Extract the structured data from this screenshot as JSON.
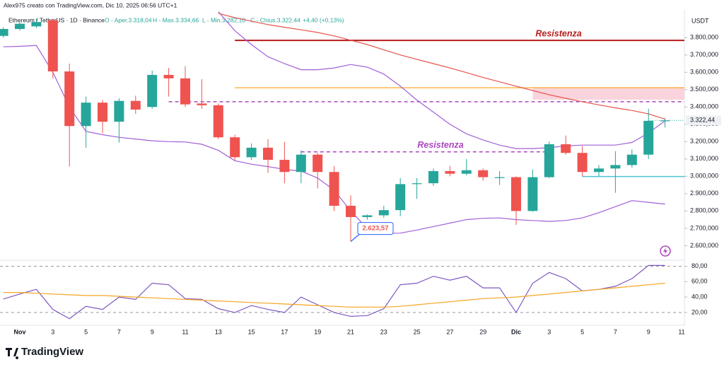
{
  "header": {
    "attribution": "Alex975 creato con TradingView.com, Dic 10, 2025 06:56 UTC+1",
    "symbol": "Ethereum / TetherUS · 1D · Binance",
    "open": "O - Aper.3.318,04",
    "high": "H - Max.3.334,66",
    "low": "L - Min.3.282,10",
    "close": "C - Chius.3.322,44",
    "change": "+4,40 (+0,13%)"
  },
  "chart_data": [
    {
      "type": "candlestick",
      "y_axis_label": "USDT",
      "categories": [
        null,
        "Nov",
        null,
        "3",
        null,
        "5",
        null,
        "7",
        null,
        "9",
        null,
        "11",
        null,
        "13",
        null,
        "15",
        null,
        "17",
        null,
        "19",
        null,
        "21",
        null,
        "23",
        null,
        "25",
        null,
        "27",
        null,
        "29",
        null,
        "Dic",
        null,
        "3",
        null,
        "5",
        null,
        "7",
        null,
        "9",
        null,
        "11"
      ],
      "open": [
        3810,
        3850,
        3865,
        3900,
        3605,
        3290,
        3425,
        3315,
        3435,
        3400,
        3585,
        3565,
        3420,
        3410,
        3225,
        3110,
        3165,
        3095,
        3025,
        3125,
        3025,
        2830,
        2765,
        2775,
        2805,
        2955,
        2960,
        3030,
        3015,
        3035,
        2990,
        2995,
        2800,
        2995,
        3185,
        3135,
        3025,
        3045,
        3065,
        3125,
        3318.04,
        null
      ],
      "high": [
        3860,
        3890,
        3910,
        3910,
        3650,
        3460,
        3440,
        3450,
        3465,
        3610,
        3625,
        3635,
        3560,
        3420,
        3240,
        3190,
        3215,
        3200,
        3150,
        3135,
        3060,
        2890,
        2780,
        2830,
        2990,
        2990,
        3045,
        3060,
        3100,
        3045,
        3030,
        3000,
        3040,
        3200,
        3235,
        3175,
        3065,
        3145,
        3155,
        3390,
        3334.66,
        null
      ],
      "low": [
        3800,
        3840,
        3855,
        3564,
        3056,
        3165,
        3250,
        3195,
        3360,
        3390,
        3460,
        3400,
        3390,
        3215,
        3090,
        3095,
        3020,
        2960,
        2960,
        2930,
        2800,
        2625,
        2750,
        2760,
        2770,
        2870,
        2945,
        3000,
        3005,
        2975,
        2950,
        2720,
        2795,
        2990,
        3125,
        3000,
        3000,
        2905,
        3050,
        3100,
        3282.1,
        null
      ],
      "close": [
        3850,
        3880,
        3890,
        3605,
        3290,
        3425,
        3315,
        3435,
        3385,
        3585,
        3565,
        3415,
        3410,
        3225,
        3110,
        3165,
        3095,
        3025,
        3125,
        3025,
        2830,
        2765,
        2775,
        2805,
        2955,
        2960,
        3030,
        3015,
        3035,
        2995,
        2995,
        2800,
        2995,
        3185,
        3135,
        3025,
        3045,
        3065,
        3125,
        3320,
        3322.44,
        null
      ],
      "up_color": "#26a69a",
      "down_color": "#ef5350",
      "indicators": [
        {
          "color": "#a25fd6",
          "values": [
            3747,
            3750,
            3755,
            3600,
            3400,
            3259,
            3240,
            3225,
            3215,
            3205,
            3200,
            3198,
            3185,
            3150,
            3090,
            3070,
            3056,
            3040,
            3030,
            2990,
            2920,
            2800,
            2700,
            2670,
            2672,
            2690,
            2710,
            2730,
            2750,
            2758,
            2760,
            2750,
            2745,
            2740,
            2745,
            2760,
            2790,
            2825,
            2860,
            2850,
            2840,
            null
          ]
        },
        {
          "color": "#a25fd6",
          "values": [
            null,
            null,
            null,
            null,
            null,
            null,
            null,
            null,
            null,
            null,
            null,
            null,
            null,
            3950,
            3840,
            3760,
            3690,
            3650,
            3615,
            3615,
            3625,
            3645,
            3630,
            3590,
            3520,
            3440,
            3370,
            3300,
            3245,
            3210,
            3180,
            3160,
            3160,
            3165,
            3175,
            3180,
            3180,
            3180,
            3195,
            3250,
            3320,
            null
          ]
        },
        {
          "color": "#e5534b",
          "values": [
            null,
            null,
            null,
            null,
            null,
            null,
            null,
            null,
            null,
            null,
            null,
            null,
            null,
            3940,
            3915,
            3895,
            3875,
            3860,
            3845,
            3830,
            3810,
            3785,
            3760,
            3730,
            3700,
            3675,
            3650,
            3625,
            3598,
            3570,
            3545,
            3520,
            3495,
            3470,
            3450,
            3430,
            3412,
            3395,
            3380,
            3360,
            3330,
            null
          ]
        }
      ],
      "levels": [
        {
          "value": 3784,
          "from": 14,
          "color": "#b71c1c",
          "label": "Resistenza"
        },
        {
          "value": 3511,
          "from": 14,
          "color": "#ffb74d"
        },
        {
          "value": 3430,
          "from": 10,
          "color": "#ab47bc",
          "dashed": true
        },
        {
          "value": 3141,
          "from": 18,
          "to": 33,
          "color": "#ab47bc",
          "dashed": true,
          "label": "Resistenza"
        },
        {
          "value": 2999,
          "from": 35,
          "color": "#4fc3cf"
        }
      ],
      "zone": {
        "range": [
          3442,
          3515
        ],
        "from": 32,
        "color": "#f9c9d3"
      },
      "callout": {
        "value": 2623.57,
        "label": "2.623,57",
        "index": 21
      },
      "last_price": {
        "value": 3322.44,
        "label": "3.322,44"
      },
      "ylim": [
        2520,
        3960
      ],
      "yticks": [
        {
          "value": 2600,
          "label": "2.600,000"
        },
        {
          "value": 2700,
          "label": "2.700,000"
        },
        {
          "value": 2800,
          "label": "2.800,000"
        },
        {
          "value": 2900,
          "label": "2.900,000"
        },
        {
          "value": 3000,
          "label": "3.000,000"
        },
        {
          "value": 3100,
          "label": "3.100,000"
        },
        {
          "value": 3200,
          "label": "3.200,000"
        },
        {
          "value": 3300,
          "label": "3.300,000"
        },
        {
          "value": 3400,
          "label": "3.400,000"
        },
        {
          "value": 3500,
          "label": "3.500,000"
        },
        {
          "value": 3600,
          "label": "3.600,000"
        },
        {
          "value": 3700,
          "label": "3.700,000"
        },
        {
          "value": 3800,
          "label": "3.800,000"
        }
      ]
    },
    {
      "type": "line",
      "series": [
        {
          "color": "#7e57c2",
          "values": [
            37.5,
            44,
            50,
            24,
            12,
            28,
            24,
            40,
            37,
            58,
            56,
            38,
            37,
            25,
            20,
            29,
            24,
            20,
            40,
            30,
            20,
            15,
            16,
            25,
            56,
            58,
            67,
            62,
            67,
            52,
            52,
            20,
            58,
            72,
            64,
            48,
            50,
            54,
            64,
            81,
            81,
            null
          ]
        },
        {
          "color": "#f5a623",
          "values": [
            46,
            46,
            45,
            44,
            43,
            42,
            42,
            41,
            40,
            39,
            38,
            37,
            36,
            35,
            34,
            33,
            32,
            31,
            30,
            29,
            28,
            27,
            27,
            27,
            28,
            30,
            32,
            34,
            36,
            38,
            39,
            40,
            42,
            44,
            46,
            48,
            50,
            52,
            54,
            56,
            58,
            null
          ]
        }
      ],
      "dashed_levels": [
        80,
        20
      ],
      "ylim": [
        8,
        86
      ],
      "yticks": [
        {
          "value": 80,
          "label": "80,00"
        },
        {
          "value": 60,
          "label": "60,00"
        },
        {
          "value": 40,
          "label": "40,00"
        },
        {
          "value": 20,
          "label": "20,00"
        }
      ]
    }
  ],
  "footer": {
    "brand": "TradingView"
  }
}
